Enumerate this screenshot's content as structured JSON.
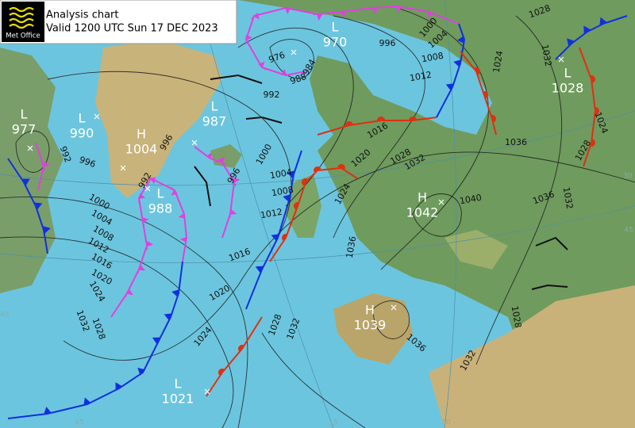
{
  "header": {
    "logo": "Met Office",
    "title": "Analysis chart",
    "valid": "Valid 1200 UTC Sun 17 DEC 2023"
  },
  "centers": [
    {
      "type": "L",
      "value": 977
    },
    {
      "type": "L",
      "value": 990
    },
    {
      "type": "H",
      "value": 1004
    },
    {
      "type": "L",
      "value": 987
    },
    {
      "type": "L",
      "value": 988
    },
    {
      "type": "L",
      "value": 970
    },
    {
      "type": "L",
      "value": 1028
    },
    {
      "type": "H",
      "value": 1042
    },
    {
      "type": "H",
      "value": 1039
    },
    {
      "type": "L",
      "value": 1021
    }
  ],
  "isobar_labels": [
    976,
    988,
    984,
    992,
    996,
    1000,
    1004,
    1008,
    1012,
    1016,
    1020,
    1024,
    1028,
    1032,
    1036,
    1040,
    1036,
    1032,
    1028,
    1024,
    1024,
    1028,
    1032,
    996,
    992,
    996,
    1000,
    1004,
    1008,
    1012,
    992,
    996,
    1000,
    1004,
    1008,
    1012,
    1016,
    1020,
    1024,
    1032,
    1028,
    1016,
    1020,
    1024,
    1028,
    1032,
    1036,
    1036,
    1032,
    1028
  ],
  "graticule_labels": [
    30,
    45,
    45,
    15,
    30,
    45
  ]
}
